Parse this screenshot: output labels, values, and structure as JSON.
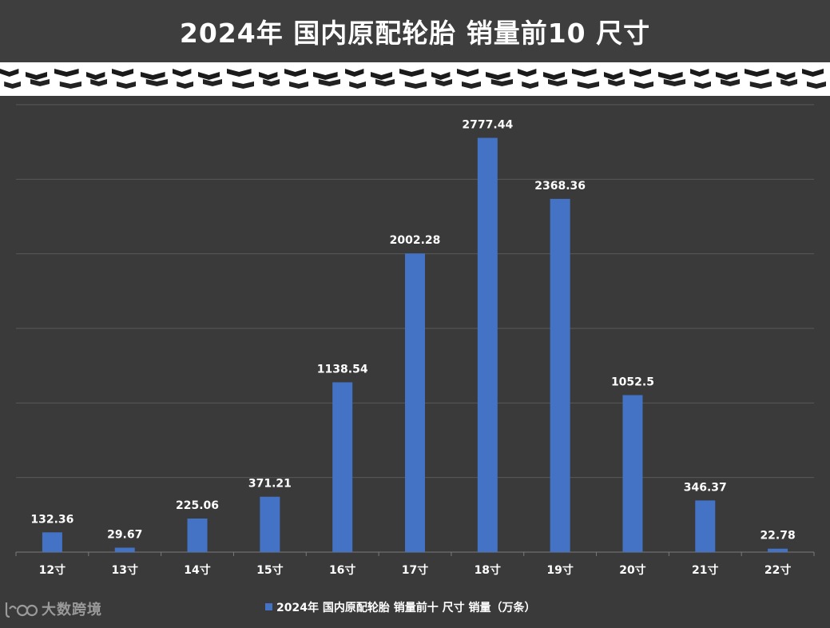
{
  "header": {
    "title": "2024年 国内原配轮胎 销量前10 尺寸"
  },
  "watermark": {
    "text": "大数跨境",
    "logo_icon": "dashuju-logo-icon"
  },
  "colors": {
    "background": "#3a3a3a",
    "bar": "#4472c4",
    "gridline": "#595959",
    "text": "#ffffff"
  },
  "chart_data": {
    "type": "bar",
    "title": "2024年 国内原配轮胎 销量前10 尺寸",
    "categories": [
      "12寸",
      "13寸",
      "14寸",
      "15寸",
      "16寸",
      "17寸",
      "18寸",
      "19寸",
      "20寸",
      "21寸",
      "22寸"
    ],
    "series": [
      {
        "name": "2024年 国内原配轮胎 销量前十 尺寸 销量（万条）",
        "values": [
          132.36,
          29.67,
          225.06,
          371.21,
          1138.54,
          2002.28,
          2777.44,
          2368.36,
          1052.5,
          346.37,
          22.78
        ],
        "labels": [
          "132.36",
          "29.67",
          "225.06",
          "371.21",
          "1138.54",
          "2002.28",
          "2777.44",
          "2368.36",
          "1052.5",
          "346.37",
          "22.78"
        ]
      }
    ],
    "xlabel": "",
    "ylabel": "",
    "ylim": [
      0,
      3000
    ],
    "y_axis_visible": false,
    "grid": true,
    "legend_position": "bottom"
  }
}
